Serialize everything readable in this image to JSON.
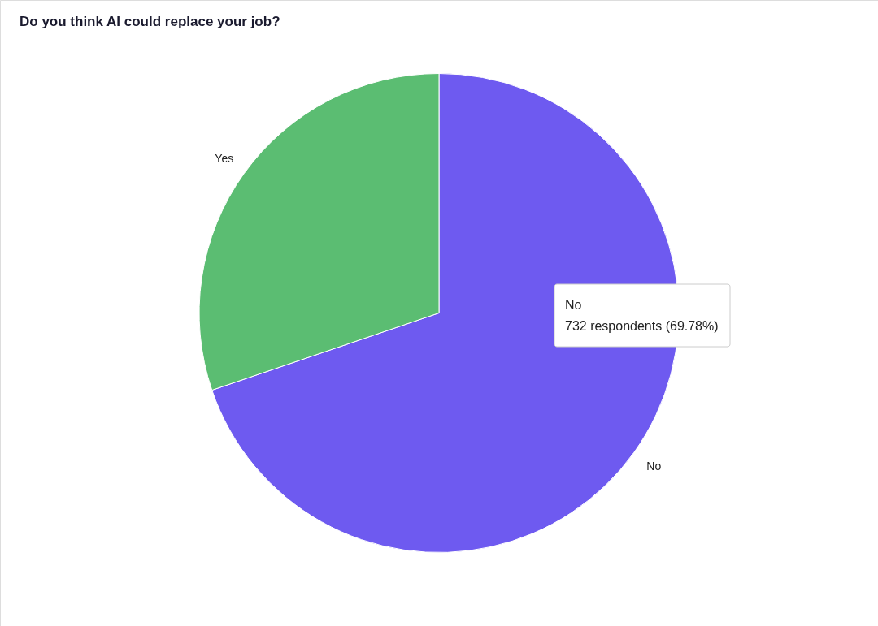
{
  "chart_data": {
    "type": "pie",
    "title": "Do you think AI could replace your job?",
    "categories": [
      "No",
      "Yes"
    ],
    "values": [
      69.78,
      30.22
    ],
    "colors": [
      "#6e5af0",
      "#5bbd72"
    ],
    "annotations": [
      "No",
      "732 respondents (69.78%)"
    ]
  }
}
